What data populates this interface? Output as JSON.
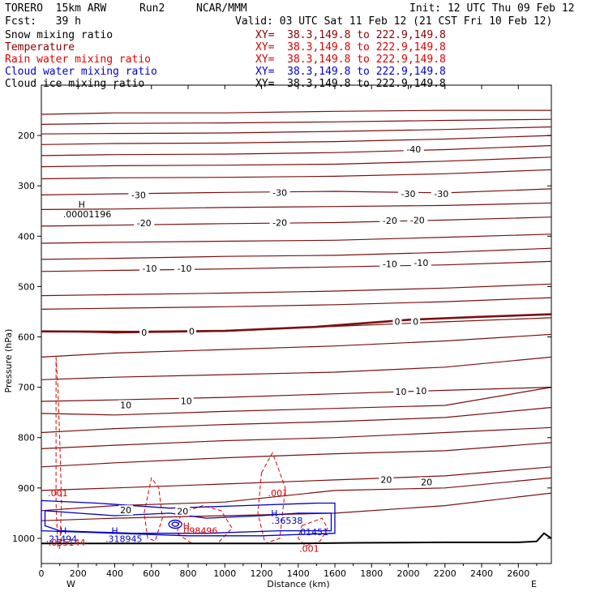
{
  "header": {
    "model": "TORERO  15km ARW",
    "run": "Run2",
    "org": "NCAR/MMM",
    "init": "Init: 12 UTC Thu 09 Feb 12",
    "fcst": "Fcst:   39 h",
    "valid": "Valid: 03 UTC Sat 11 Feb 12 (21 CST Fri 10 Feb 12)"
  },
  "fields": [
    {
      "name": "Snow mixing ratio",
      "xy": "",
      "color": "#000000"
    },
    {
      "name": "Temperature",
      "xy": "XY=  38.3,149.8 to 222.9,149.8",
      "color": "#8b0000"
    },
    {
      "name": "Rain water mixing ratio",
      "xy": "XY=  38.3,149.8 to 222.9,149.8",
      "color": "#dd0000"
    },
    {
      "name": "Cloud water mixing ratio",
      "xy": "XY=  38.3,149.8 to 222.9,149.8",
      "color": "#0000cc"
    },
    {
      "name": "Cloud ice mixing ratio",
      "xy": "XY=  38.3,149.8 to 222.9,149.8",
      "color": "#000000"
    }
  ],
  "snow_xy": "XY=  38.3,149.8 to 222.9,149.8",
  "chart_data": {
    "type": "line",
    "xlabel": "Distance (km)",
    "ylabel": "Pressure (hPa)",
    "xlim": [
      0,
      2780
    ],
    "ylim": [
      1050,
      100
    ],
    "x_ticks": [
      0,
      200,
      400,
      600,
      800,
      1000,
      1200,
      1400,
      1600,
      1800,
      2000,
      2200,
      2400,
      2600
    ],
    "y_ticks": [
      200,
      300,
      400,
      500,
      600,
      700,
      800,
      900,
      1000
    ],
    "x_ends": {
      "left": "W",
      "right": "E"
    },
    "temperature_isotherms": [
      {
        "p": [
          158,
          155,
          155,
          152,
          150,
          150
        ],
        "x": [
          0,
          400,
          1000,
          1600,
          2200,
          2780
        ]
      },
      {
        "p": [
          178,
          176,
          175,
          173,
          170,
          168
        ],
        "x": [
          0,
          400,
          1000,
          1600,
          2200,
          2780
        ]
      },
      {
        "p": [
          197,
          196,
          195,
          192,
          188,
          183
        ],
        "x": [
          0,
          400,
          1000,
          1600,
          2200,
          2780
        ]
      },
      {
        "p": [
          218,
          216,
          215,
          212,
          207,
          200
        ],
        "x": [
          0,
          400,
          1000,
          1600,
          2200,
          2780
        ]
      },
      {
        "p": [
          240,
          238,
          237,
          234,
          228,
          220
        ],
        "x": [
          0,
          400,
          1000,
          1600,
          2200,
          2780
        ]
      },
      {
        "p": [
          262,
          260,
          259,
          257,
          251,
          243
        ],
        "x": [
          0,
          400,
          1000,
          1600,
          2200,
          2780
        ]
      },
      {
        "p": [
          286,
          284,
          283,
          281,
          276,
          268
        ],
        "x": [
          0,
          400,
          1000,
          1600,
          2200,
          2780
        ]
      },
      {
        "p": [
          318,
          316,
          313,
          311,
          314,
          306
        ],
        "x": [
          0,
          400,
          1000,
          1600,
          2200,
          2780
        ]
      },
      {
        "p": [
          347,
          346,
          343,
          341,
          339,
          334
        ],
        "x": [
          0,
          400,
          1000,
          1600,
          2200,
          2780
        ]
      },
      {
        "p": [
          380,
          378,
          375,
          373,
          368,
          362
        ],
        "x": [
          0,
          400,
          1000,
          1600,
          2200,
          2780
        ]
      },
      {
        "p": [
          414,
          412,
          410,
          408,
          402,
          396
        ],
        "x": [
          0,
          400,
          1000,
          1600,
          2200,
          2780
        ]
      },
      {
        "p": [
          446,
          444,
          440,
          438,
          432,
          424
        ],
        "x": [
          0,
          400,
          1000,
          1600,
          2200,
          2780
        ]
      },
      {
        "p": [
          470,
          468,
          465,
          461,
          457,
          450
        ],
        "x": [
          0,
          400,
          1000,
          1600,
          2200,
          2780
        ]
      },
      {
        "p": [
          518,
          516,
          513,
          509,
          503,
          495
        ],
        "x": [
          0,
          400,
          1000,
          1600,
          2200,
          2780
        ]
      },
      {
        "p": [
          545,
          543,
          540,
          536,
          530,
          522
        ],
        "x": [
          0,
          400,
          1000,
          1600,
          2200,
          2780
        ]
      },
      {
        "p": [
          588,
          592,
          589,
          579,
          570,
          562
        ],
        "x": [
          0,
          400,
          1000,
          1600,
          2200,
          2780
        ]
      },
      {
        "p": [
          640,
          632,
          625,
          618,
          608,
          595
        ],
        "x": [
          0,
          400,
          1000,
          1600,
          2200,
          2780
        ]
      },
      {
        "p": [
          685,
          680,
          675,
          670,
          660,
          640
        ],
        "x": [
          0,
          400,
          1000,
          1600,
          2200,
          2780
        ]
      },
      {
        "p": [
          728,
          725,
          720,
          713,
          706,
          700
        ],
        "x": [
          0,
          400,
          1000,
          1600,
          2200,
          2780
        ]
      },
      {
        "p": [
          752,
          755,
          748,
          742,
          736,
          700
        ],
        "x": [
          0,
          400,
          1000,
          1600,
          2200,
          2780
        ]
      },
      {
        "p": [
          790,
          782,
          774,
          768,
          760,
          740
        ],
        "x": [
          0,
          400,
          1000,
          1600,
          2200,
          2780
        ]
      },
      {
        "p": [
          822,
          815,
          806,
          800,
          790,
          780
        ],
        "x": [
          0,
          400,
          1000,
          1600,
          2200,
          2780
        ]
      },
      {
        "p": [
          858,
          850,
          840,
          832,
          826,
          810
        ],
        "x": [
          0,
          400,
          1000,
          1600,
          2200,
          2780
        ]
      },
      {
        "p": [
          905,
          900,
          892,
          884,
          876,
          858
        ],
        "x": [
          0,
          400,
          1000,
          1600,
          2200,
          2780
        ]
      },
      {
        "p": [
          945,
          935,
          928,
          905,
          900,
          880
        ],
        "x": [
          0,
          400,
          1000,
          1600,
          2200,
          2780
        ]
      },
      {
        "p": [
          965,
          960,
          955,
          950,
          935,
          910
        ],
        "x": [
          0,
          400,
          1000,
          1600,
          2200,
          2780
        ]
      }
    ],
    "zero_isotherm": {
      "p": [
        589,
        590,
        588,
        580,
        566,
        560,
        555
      ],
      "x": [
        0,
        500,
        1000,
        1500,
        2000,
        2400,
        2780
      ]
    },
    "temperature_labels": [
      {
        "text": "-40",
        "x": 2030,
        "p": 227
      },
      {
        "text": "-30",
        "x": 530,
        "p": 318
      },
      {
        "text": "-30",
        "x": 1300,
        "p": 313
      },
      {
        "text": "-30",
        "x": 2000,
        "p": 316
      },
      {
        "text": "-30",
        "x": 2180,
        "p": 316
      },
      {
        "text": "-20",
        "x": 560,
        "p": 374
      },
      {
        "text": "-20",
        "x": 1300,
        "p": 373
      },
      {
        "text": "-20",
        "x": 1900,
        "p": 369
      },
      {
        "text": "-20",
        "x": 2050,
        "p": 368
      },
      {
        "text": "-10",
        "x": 590,
        "p": 464
      },
      {
        "text": "-10",
        "x": 780,
        "p": 464
      },
      {
        "text": "-10",
        "x": 1900,
        "p": 455
      },
      {
        "text": "-10",
        "x": 2070,
        "p": 453
      },
      {
        "text": "0",
        "x": 560,
        "p": 591
      },
      {
        "text": "0",
        "x": 820,
        "p": 589
      },
      {
        "text": "0",
        "x": 1940,
        "p": 569
      },
      {
        "text": "0",
        "x": 2040,
        "p": 569
      },
      {
        "text": "10",
        "x": 460,
        "p": 735
      },
      {
        "text": "10",
        "x": 790,
        "p": 727
      },
      {
        "text": "10",
        "x": 1960,
        "p": 709
      },
      {
        "text": "10",
        "x": 2070,
        "p": 707
      },
      {
        "text": "20",
        "x": 460,
        "p": 944
      },
      {
        "text": "20",
        "x": 770,
        "p": 946
      },
      {
        "text": "20",
        "x": 1880,
        "p": 883
      },
      {
        "text": "20",
        "x": 2100,
        "p": 888
      }
    ],
    "rain_labels": [
      {
        "text": ".001",
        "x": 90,
        "p": 910
      },
      {
        "text": ".001",
        "x": 1290,
        "p": 910
      },
      {
        "text": "H",
        "x": 790,
        "p": 975
      },
      {
        "text": ".098496",
        "x": 860,
        "p": 985
      },
      {
        "text": ".035144",
        "x": 140,
        "p": 1008
      },
      {
        "text": ".001",
        "x": 1460,
        "p": 1020
      }
    ],
    "cloud_water_labels": [
      {
        "text": "H",
        "x": 120,
        "p": 985
      },
      {
        "text": ".21494",
        "x": 110,
        "p": 1001
      },
      {
        "text": "H",
        "x": 400,
        "p": 985
      },
      {
        "text": ".318945",
        "x": 450,
        "p": 1001
      },
      {
        "text": "H",
        "x": 1270,
        "p": 950
      },
      {
        "text": ".36538",
        "x": 1340,
        "p": 965
      },
      {
        "text": ".01451",
        "x": 1480,
        "p": 987
      }
    ],
    "cloud_ice_labels": [
      {
        "text": "H",
        "x": 220,
        "p": 337
      },
      {
        "text": ".00001196",
        "x": 250,
        "p": 356
      }
    ],
    "surface": {
      "p": [
        1010,
        1010,
        1010,
        1009,
        1008,
        1008,
        1006,
        990,
        1000
      ],
      "x": [
        0,
        800,
        1400,
        1700,
        2200,
        2600,
        2700,
        2740,
        2780
      ]
    }
  }
}
